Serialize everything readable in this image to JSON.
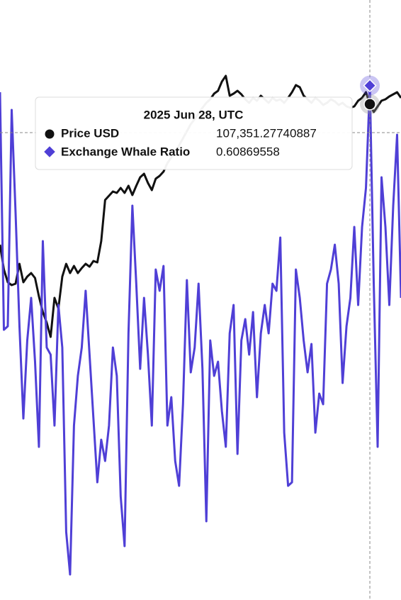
{
  "chart_data": {
    "type": "line",
    "series": [
      {
        "name": "Price USD",
        "color": "#111111",
        "axis": "y",
        "values": [
          84770,
          80780,
          78728,
          78272,
          78500,
          81692,
          78728,
          79640,
          80210,
          79412,
          76448,
          73940,
          72230,
          69950,
          76220,
          74510,
          79640,
          81692,
          80210,
          81350,
          80210,
          81008,
          81692,
          81236,
          82148,
          81920,
          85340,
          91952,
          92636,
          93320,
          93092,
          93890,
          93092,
          94232,
          92750,
          94232,
          95600,
          96170,
          94688,
          93548,
          95372,
          95828,
          96512,
          97880,
          98792,
          99590,
          100730,
          101870,
          103010,
          104150,
          104948,
          105860,
          106772,
          107570,
          108140,
          109052,
          109508,
          110990,
          111902,
          108710,
          109052,
          109508,
          108938,
          108140,
          107570,
          108368,
          107912,
          108710,
          108140,
          107570,
          108368,
          107912,
          108140,
          107570,
          108368,
          109280,
          110420,
          110078,
          108710,
          108140,
          107570,
          108368,
          107912,
          107228,
          107570,
          108140,
          107798,
          107228,
          107570,
          107000,
          106772,
          107000,
          107912,
          108368,
          109280,
          107351.27740887,
          106088,
          107000,
          107912,
          108140,
          108596,
          108938,
          109280,
          108368
        ]
      },
      {
        "name": "Exchange Whale Ratio",
        "color": "#4f3fd6",
        "axis": "y2",
        "values": [
          0.604,
          0.4365,
          0.439,
          0.5915,
          0.519,
          0.439,
          0.374,
          0.429,
          0.459,
          0.414,
          0.354,
          0.499,
          0.424,
          0.419,
          0.369,
          0.454,
          0.424,
          0.294,
          0.264,
          0.369,
          0.404,
          0.424,
          0.464,
          0.419,
          0.374,
          0.329,
          0.359,
          0.344,
          0.369,
          0.424,
          0.404,
          0.319,
          0.284,
          0.434,
          0.524,
          0.469,
          0.409,
          0.459,
          0.419,
          0.369,
          0.479,
          0.464,
          0.4815,
          0.369,
          0.389,
          0.344,
          0.3265,
          0.384,
          0.4715,
          0.4065,
          0.424,
          0.469,
          0.409,
          0.3015,
          0.429,
          0.404,
          0.414,
          0.379,
          0.354,
          0.434,
          0.454,
          0.349,
          0.429,
          0.444,
          0.419,
          0.449,
          0.389,
          0.434,
          0.454,
          0.434,
          0.469,
          0.464,
          0.5015,
          0.364,
          0.3265,
          0.329,
          0.479,
          0.459,
          0.429,
          0.4065,
          0.4265,
          0.364,
          0.3915,
          0.384,
          0.469,
          0.479,
          0.4965,
          0.469,
          0.399,
          0.439,
          0.459,
          0.509,
          0.454,
          0.509,
          0.5365,
          0.60869558,
          0.469,
          0.354,
          0.544,
          0.509,
          0.454,
          0.524,
          0.574,
          0.459
        ]
      }
    ],
    "ylim": [
      27656,
      124100
    ],
    "y2lim": [
      0.246,
      0.669
    ],
    "hover": {
      "title": "2025 Jun 28, UTC",
      "values": [
        107351.27740887,
        0.60869558
      ],
      "value_labels": [
        "107,351.27740887",
        "0.60869558"
      ]
    }
  }
}
